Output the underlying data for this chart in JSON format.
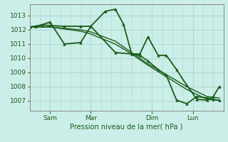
{
  "bg_color": "#cceee8",
  "grid_color": "#aad4ce",
  "line_color": "#1a5c1a",
  "marker_color": "#1a5c1a",
  "xlabel": "Pression niveau de la mer( hPa )",
  "ylim": [
    1006.3,
    1013.8
  ],
  "yticks": [
    1007,
    1008,
    1009,
    1010,
    1011,
    1012,
    1013
  ],
  "xtick_labels": [
    "Sam",
    "Mar",
    "Dim",
    "Lun"
  ],
  "xtick_positions": [
    1,
    3,
    6,
    8
  ],
  "xlim": [
    0,
    9.5
  ],
  "series": [
    {
      "x": [
        0,
        0.3,
        0.6,
        1.0,
        1.7,
        2.5,
        3.0,
        3.7,
        4.2,
        4.6,
        5.0,
        5.4,
        5.8,
        6.3,
        6.7,
        7.2,
        7.7,
        8.2,
        8.7,
        9.0,
        9.3
      ],
      "y": [
        1012.2,
        1012.25,
        1012.35,
        1012.3,
        1012.25,
        1012.25,
        1012.25,
        1013.3,
        1013.45,
        1012.4,
        1010.3,
        1010.3,
        1011.5,
        1010.2,
        1010.2,
        1009.2,
        1008.1,
        1007.1,
        1007.05,
        1007.3,
        1008.0
      ],
      "lw": 1.3,
      "markers": true
    },
    {
      "x": [
        0,
        0.3,
        0.6,
        1.0,
        1.7,
        2.5,
        3.0,
        4.2,
        5.0,
        5.4,
        5.8,
        6.3,
        6.7,
        7.2,
        7.7,
        8.2,
        8.7,
        9.0,
        9.3
      ],
      "y": [
        1012.2,
        1012.25,
        1012.35,
        1012.55,
        1011.0,
        1011.1,
        1012.25,
        1010.4,
        1010.3,
        1010.2,
        1009.8,
        1009.2,
        1008.8,
        1007.05,
        1006.8,
        1007.3,
        1007.2,
        1007.1,
        1007.05
      ],
      "lw": 1.3,
      "markers": true
    },
    {
      "x": [
        0,
        1.0,
        2.5,
        3.0,
        4.2,
        5.0,
        5.8,
        6.7,
        7.7,
        8.7,
        9.3
      ],
      "y": [
        1012.2,
        1012.2,
        1011.9,
        1011.7,
        1011.0,
        1010.3,
        1009.5,
        1008.7,
        1007.8,
        1007.1,
        1007.05
      ],
      "lw": 1.0,
      "markers": false
    },
    {
      "x": [
        0,
        1.0,
        2.5,
        3.0,
        4.2,
        5.0,
        5.8,
        6.7,
        7.7,
        8.7,
        9.3
      ],
      "y": [
        1012.2,
        1012.2,
        1012.0,
        1011.85,
        1011.2,
        1010.4,
        1009.6,
        1008.85,
        1008.0,
        1007.3,
        1007.2
      ],
      "lw": 1.0,
      "markers": false
    }
  ]
}
